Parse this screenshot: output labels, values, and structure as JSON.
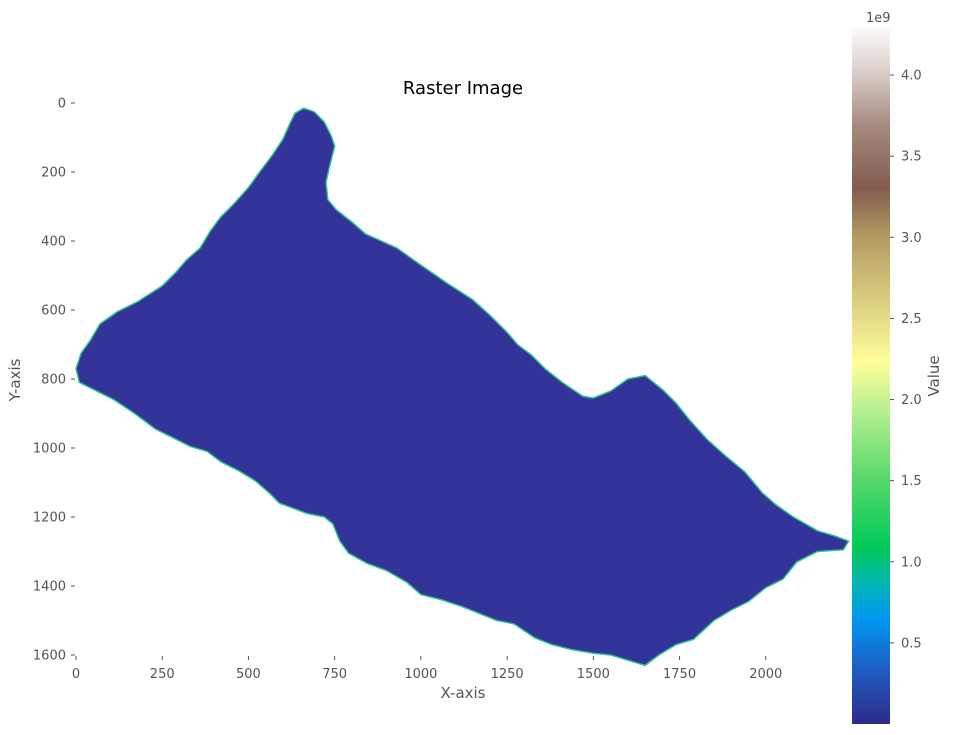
{
  "chart_data": {
    "type": "heatmap",
    "title": "Raster Image",
    "xlabel": "X-axis",
    "ylabel": "Y-axis",
    "xlim": [
      0,
      2250
    ],
    "ylim": [
      1600,
      0
    ],
    "x_ticks": [
      0,
      250,
      500,
      750,
      1000,
      1250,
      1500,
      1750,
      2000
    ],
    "y_ticks": [
      0,
      200,
      400,
      600,
      800,
      1000,
      1200,
      1400,
      1600
    ],
    "y_axis_inverted": true,
    "grid": false,
    "colorbar": {
      "label": "Value",
      "offset_label": "1e9",
      "colormap": "gist_earth-like",
      "range": [
        0,
        4.29
      ],
      "ticks": [
        "0.5",
        "1.0",
        "1.5",
        "2.0",
        "2.5",
        "3.0",
        "3.5",
        "4.0"
      ],
      "colors": [
        {
          "v": 0.0,
          "c": "#2e2a8a"
        },
        {
          "v": 0.08,
          "c": "#1e5fc4"
        },
        {
          "v": 0.15,
          "c": "#0096f0"
        },
        {
          "v": 0.2,
          "c": "#00b5b8"
        },
        {
          "v": 0.25,
          "c": "#00c85a"
        },
        {
          "v": 0.35,
          "c": "#55d86a"
        },
        {
          "v": 0.45,
          "c": "#b6f090"
        },
        {
          "v": 0.52,
          "c": "#ffff99"
        },
        {
          "v": 0.62,
          "c": "#d6c77c"
        },
        {
          "v": 0.7,
          "c": "#b49a62"
        },
        {
          "v": 0.77,
          "c": "#825c4e"
        },
        {
          "v": 0.86,
          "c": "#a68a80"
        },
        {
          "v": 0.93,
          "c": "#d6c8c3"
        },
        {
          "v": 1.0,
          "c": "#fcfcfc"
        }
      ]
    },
    "region": {
      "fill_color": "#33339a",
      "edge_color": "#2bc48a",
      "value": 0.0,
      "outline": [
        [
          635,
          30
        ],
        [
          660,
          15
        ],
        [
          690,
          25
        ],
        [
          720,
          55
        ],
        [
          740,
          95
        ],
        [
          750,
          125
        ],
        [
          735,
          185
        ],
        [
          725,
          230
        ],
        [
          730,
          280
        ],
        [
          755,
          310
        ],
        [
          800,
          345
        ],
        [
          840,
          380
        ],
        [
          930,
          420
        ],
        [
          1000,
          470
        ],
        [
          1080,
          525
        ],
        [
          1150,
          570
        ],
        [
          1200,
          615
        ],
        [
          1250,
          665
        ],
        [
          1280,
          700
        ],
        [
          1320,
          730
        ],
        [
          1360,
          770
        ],
        [
          1410,
          810
        ],
        [
          1440,
          830
        ],
        [
          1470,
          850
        ],
        [
          1500,
          855
        ],
        [
          1550,
          835
        ],
        [
          1600,
          800
        ],
        [
          1650,
          790
        ],
        [
          1700,
          830
        ],
        [
          1740,
          870
        ],
        [
          1780,
          920
        ],
        [
          1830,
          975
        ],
        [
          1880,
          1020
        ],
        [
          1940,
          1070
        ],
        [
          1990,
          1130
        ],
        [
          2030,
          1165
        ],
        [
          2080,
          1200
        ],
        [
          2150,
          1240
        ],
        [
          2200,
          1255
        ],
        [
          2240,
          1270
        ],
        [
          2225,
          1295
        ],
        [
          2150,
          1300
        ],
        [
          2090,
          1330
        ],
        [
          2050,
          1380
        ],
        [
          2000,
          1405
        ],
        [
          1950,
          1445
        ],
        [
          1900,
          1470
        ],
        [
          1850,
          1500
        ],
        [
          1790,
          1555
        ],
        [
          1740,
          1570
        ],
        [
          1690,
          1600
        ],
        [
          1650,
          1630
        ],
        [
          1600,
          1615
        ],
        [
          1550,
          1600
        ],
        [
          1500,
          1595
        ],
        [
          1440,
          1585
        ],
        [
          1380,
          1570
        ],
        [
          1330,
          1550
        ],
        [
          1270,
          1510
        ],
        [
          1220,
          1500
        ],
        [
          1170,
          1480
        ],
        [
          1120,
          1460
        ],
        [
          1060,
          1440
        ],
        [
          1000,
          1425
        ],
        [
          960,
          1390
        ],
        [
          900,
          1355
        ],
        [
          845,
          1335
        ],
        [
          790,
          1305
        ],
        [
          765,
          1270
        ],
        [
          745,
          1220
        ],
        [
          720,
          1200
        ],
        [
          670,
          1190
        ],
        [
          590,
          1160
        ],
        [
          560,
          1130
        ],
        [
          520,
          1095
        ],
        [
          470,
          1065
        ],
        [
          420,
          1040
        ],
        [
          380,
          1010
        ],
        [
          330,
          995
        ],
        [
          280,
          970
        ],
        [
          230,
          945
        ],
        [
          170,
          900
        ],
        [
          110,
          860
        ],
        [
          60,
          835
        ],
        [
          10,
          810
        ],
        [
          0,
          770
        ],
        [
          15,
          725
        ],
        [
          40,
          690
        ],
        [
          70,
          640
        ],
        [
          120,
          605
        ],
        [
          180,
          575
        ],
        [
          250,
          530
        ],
        [
          290,
          490
        ],
        [
          320,
          455
        ],
        [
          360,
          420
        ],
        [
          390,
          370
        ],
        [
          420,
          330
        ],
        [
          460,
          290
        ],
        [
          500,
          245
        ],
        [
          540,
          190
        ],
        [
          570,
          150
        ],
        [
          600,
          105
        ],
        [
          620,
          60
        ]
      ]
    }
  }
}
